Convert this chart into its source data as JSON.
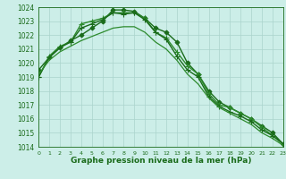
{
  "series": [
    {
      "x": [
        0,
        1,
        2,
        3,
        4,
        5,
        6,
        7,
        8,
        9,
        10,
        11,
        12,
        13,
        14,
        15,
        16,
        17,
        18,
        19,
        20,
        21,
        22,
        23
      ],
      "y": [
        1019.5,
        1020.4,
        1021.1,
        1021.6,
        1022.0,
        1022.5,
        1023.0,
        1023.8,
        1023.8,
        1023.7,
        1023.2,
        1022.5,
        1022.2,
        1021.5,
        1020.0,
        1019.2,
        1018.0,
        1017.2,
        1016.8,
        1016.4,
        1016.0,
        1015.5,
        1015.0,
        1014.2
      ],
      "color": "#1a6b1a",
      "linewidth": 1.0,
      "marker": "D",
      "markersize": 2.5
    },
    {
      "x": [
        0,
        1,
        2,
        3,
        4,
        5,
        6,
        7,
        8,
        9,
        10,
        11,
        12,
        13,
        14,
        15,
        16,
        17,
        18,
        19,
        20,
        21,
        22,
        23
      ],
      "y": [
        1019.0,
        1020.5,
        1021.2,
        1021.5,
        1022.8,
        1023.0,
        1023.2,
        1023.6,
        1023.6,
        1023.6,
        1023.2,
        1022.2,
        1021.8,
        1020.8,
        1019.8,
        1019.2,
        1017.8,
        1017.0,
        1016.8,
        1016.4,
        1016.0,
        1015.4,
        1014.8,
        1014.2
      ],
      "color": "#2d8b2d",
      "linewidth": 1.0,
      "marker": "+",
      "markersize": 4
    },
    {
      "x": [
        0,
        1,
        2,
        3,
        4,
        5,
        6,
        7,
        8,
        9,
        10,
        11,
        12,
        13,
        14,
        15,
        16,
        17,
        18,
        19,
        20,
        21,
        22,
        23
      ],
      "y": [
        1019.0,
        1020.4,
        1021.1,
        1021.5,
        1022.5,
        1022.8,
        1023.1,
        1023.6,
        1023.5,
        1023.6,
        1023.1,
        1022.2,
        1021.7,
        1020.5,
        1019.5,
        1019.0,
        1017.6,
        1016.9,
        1016.5,
        1016.2,
        1015.8,
        1015.2,
        1014.8,
        1014.2
      ],
      "color": "#1a6b1a",
      "linewidth": 1.0,
      "marker": "+",
      "markersize": 4
    },
    {
      "x": [
        0,
        1,
        2,
        3,
        4,
        5,
        6,
        7,
        8,
        9,
        10,
        11,
        12,
        13,
        14,
        15,
        16,
        17,
        18,
        19,
        20,
        21,
        22,
        23
      ],
      "y": [
        1019.2,
        1020.2,
        1020.8,
        1021.2,
        1021.6,
        1021.9,
        1022.2,
        1022.5,
        1022.6,
        1022.6,
        1022.2,
        1021.5,
        1021.0,
        1020.2,
        1019.2,
        1018.5,
        1017.5,
        1016.8,
        1016.4,
        1016.0,
        1015.6,
        1015.0,
        1014.6,
        1014.1
      ],
      "color": "#2d8b2d",
      "linewidth": 0.9,
      "marker": null,
      "markersize": 0
    }
  ],
  "background_color": "#cceee8",
  "grid_color": "#aad4cc",
  "axes_color": "#1a6b1a",
  "text_color": "#1a6b1a",
  "xlabel": "Graphe pression niveau de la mer (hPa)",
  "xlabel_fontsize": 6.5,
  "ylim": [
    1014,
    1024
  ],
  "xlim": [
    0,
    23
  ],
  "yticks": [
    1014,
    1015,
    1016,
    1017,
    1018,
    1019,
    1020,
    1021,
    1022,
    1023,
    1024
  ],
  "xticks": [
    0,
    1,
    2,
    3,
    4,
    5,
    6,
    7,
    8,
    9,
    10,
    11,
    12,
    13,
    14,
    15,
    16,
    17,
    18,
    19,
    20,
    21,
    22,
    23
  ]
}
